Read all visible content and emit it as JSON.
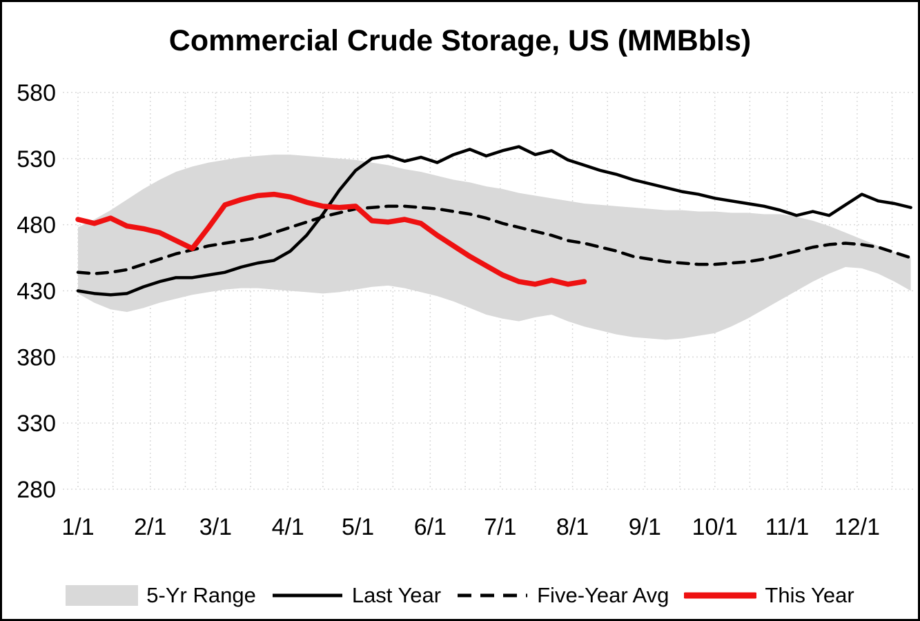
{
  "title": "Commercial Crude Storage, US (MMBbls)",
  "colors": {
    "background": "#ffffff",
    "border": "#000000",
    "grid": "#d9d9d9",
    "range_fill": "#d9d9d9",
    "black_line": "#000000",
    "red_line": "#ee1111",
    "text": "#000000"
  },
  "legend": [
    {
      "label": "5-Yr Range",
      "type": "area",
      "color": "#d9d9d9"
    },
    {
      "label": "Last Year",
      "type": "solid-line",
      "color": "#000000"
    },
    {
      "label": "Five-Year Avg",
      "type": "dashed-line",
      "color": "#000000"
    },
    {
      "label": "This Year",
      "type": "solid-line",
      "color": "#ee1111"
    }
  ],
  "chart_data": {
    "type": "line",
    "title": "Commercial Crude Storage, US (MMBbls)",
    "x_unit": "day of year, weekly points (day = 1 + 7*i)",
    "x_tick_days": [
      1,
      32,
      60,
      91,
      121,
      152,
      182,
      213,
      244,
      274,
      305,
      335
    ],
    "x_tick_labels": [
      "1/1",
      "2/1",
      "3/1",
      "4/1",
      "5/1",
      "6/1",
      "7/1",
      "8/1",
      "9/1",
      "10/1",
      "11/1",
      "12/1"
    ],
    "y_ticks": [
      580,
      530,
      480,
      430,
      380,
      330,
      280
    ],
    "ylim": [
      280,
      580
    ],
    "grid": true,
    "legend_position": "bottom",
    "series": [
      {
        "name": "5-Yr Range",
        "style": "band",
        "fill": "#d9d9d9",
        "upper": [
          478,
          484,
          491,
          499,
          507,
          514,
          520,
          524,
          527,
          529,
          531,
          532,
          533,
          533,
          532,
          531,
          530,
          529,
          527,
          525,
          522,
          520,
          517,
          514,
          512,
          509,
          507,
          504,
          502,
          500,
          498,
          496,
          495,
          494,
          493,
          492,
          491,
          491,
          490,
          490,
          489,
          489,
          488,
          488,
          486,
          483,
          479,
          474,
          469,
          464,
          459,
          455
        ],
        "lower": [
          428,
          421,
          416,
          414,
          417,
          421,
          424,
          427,
          429,
          431,
          432,
          432,
          431,
          430,
          429,
          428,
          429,
          431,
          433,
          434,
          432,
          429,
          426,
          422,
          417,
          412,
          409,
          407,
          410,
          412,
          407,
          403,
          400,
          397,
          395,
          394,
          393,
          394,
          396,
          398,
          403,
          409,
          416,
          423,
          430,
          437,
          443,
          448,
          447,
          443,
          437,
          430
        ]
      },
      {
        "name": "Last Year",
        "style": "solid",
        "color": "#000000",
        "values": [
          430,
          428,
          427,
          428,
          433,
          437,
          440,
          440,
          442,
          444,
          448,
          451,
          453,
          460,
          472,
          488,
          506,
          521,
          530,
          532,
          528,
          531,
          527,
          533,
          537,
          532,
          536,
          539,
          533,
          536,
          529,
          525,
          521,
          518,
          514,
          511,
          508,
          505,
          503,
          500,
          498,
          496,
          494,
          491,
          487,
          490,
          487,
          495,
          503,
          498,
          496,
          493
        ]
      },
      {
        "name": "Five-Year Avg",
        "style": "dashed",
        "color": "#000000",
        "values": [
          444,
          443,
          444,
          446,
          450,
          454,
          458,
          461,
          464,
          466,
          468,
          470,
          474,
          478,
          482,
          486,
          489,
          492,
          493,
          494,
          494,
          493,
          492,
          490,
          488,
          485,
          481,
          478,
          475,
          472,
          468,
          466,
          463,
          460,
          456,
          454,
          452,
          451,
          450,
          450,
          451,
          452,
          454,
          457,
          460,
          463,
          465,
          466,
          465,
          463,
          459,
          455
        ]
      },
      {
        "name": "This Year",
        "style": "solid",
        "color": "#ee1111",
        "values": [
          484,
          481,
          485,
          479,
          477,
          474,
          468,
          462,
          478,
          495,
          499,
          502,
          503,
          501,
          497,
          494,
          493,
          494,
          483,
          482,
          484,
          481,
          472,
          464,
          456,
          449,
          442,
          437,
          435,
          438,
          435,
          437
        ]
      }
    ]
  }
}
